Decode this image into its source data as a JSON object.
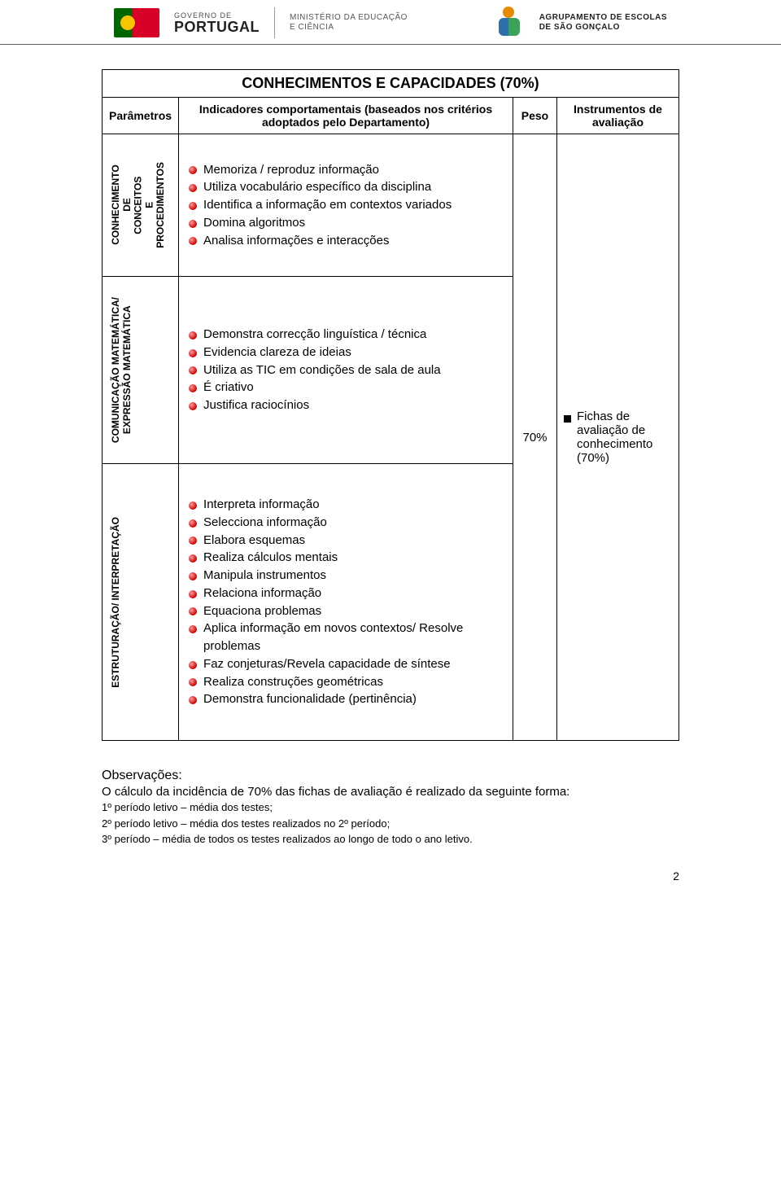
{
  "header": {
    "gov_top": "GOVERNO DE",
    "gov_name": "PORTUGAL",
    "ministry_line1": "MINISTÉRIO DA EDUCAÇÃO",
    "ministry_line2": "E CIÊNCIA",
    "agr_line1": "AGRUPAMENTO DE ESCOLAS",
    "agr_line2": "DE SÃO GONÇALO"
  },
  "table": {
    "title": "CONHECIMENTOS E CAPACIDADES (70%)",
    "headers": {
      "param": "Parâmetros",
      "indic": "Indicadores comportamentais (baseados nos critérios adoptados pelo Departamento)",
      "peso": "Peso",
      "instr": "Instrumentos de avaliação"
    },
    "rows": [
      {
        "param_label": "CONHECIMENTO\nDE\nCONCEITOS\nE\nPROCEDIMENTOS",
        "indicators": [
          "Memoriza / reproduz informação",
          "Utiliza vocabulário específico da disciplina",
          "Identifica a informação em contextos variados",
          "Domina algoritmos",
          "Analisa informações e interacções"
        ]
      },
      {
        "param_label": "COMUNICAÇÃO MATEMÁTICA/\nEXPRESSÃO MATEMÁTICA",
        "indicators": [
          "Demonstra correcção linguística / técnica",
          "Evidencia clareza de ideias",
          "Utiliza as TIC em condições de sala de aula",
          "É criativo",
          "Justifica raciocínios"
        ]
      },
      {
        "param_label": "ESTRUTURAÇÃO/ INTERPRETAÇÃO",
        "indicators": [
          "Interpreta informação",
          "Selecciona informação",
          "Elabora esquemas",
          "Realiza cálculos mentais",
          "Manipula instrumentos",
          "Relaciona informação",
          "Equaciona problemas",
          "Aplica informação em novos contextos/ Resolve problemas",
          "Faz conjeturas/Revela capacidade de síntese",
          "Realiza construções geométricas",
          "Demonstra funcionalidade (pertinência)"
        ]
      }
    ],
    "peso_value": "70%",
    "instrument_item": "Fichas de avaliação de conhecimento (70%)"
  },
  "obs": {
    "title": "Observações:",
    "intro": "O cálculo da incidência de 70% das fichas de avaliação é realizado da seguinte forma:",
    "lines": [
      "1º período letivo – média dos testes;",
      "2º período letivo – média dos testes realizados no 2º período;",
      "3º período – média de todos os testes realizados ao longo de todo o ano letivo."
    ]
  },
  "page_number": "2",
  "colors": {
    "border": "#000000",
    "bullet_red": "#cc0000",
    "flag_green": "#006600",
    "flag_red": "#d80027",
    "text": "#000000"
  }
}
